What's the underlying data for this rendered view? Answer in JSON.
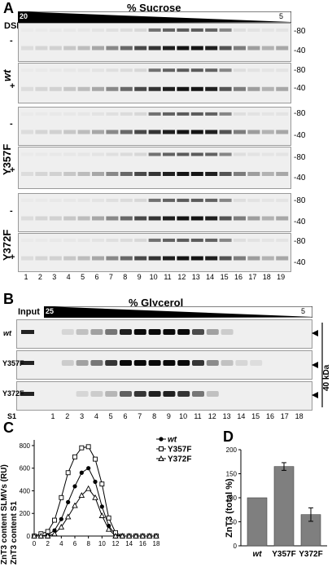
{
  "panelA": {
    "letter": "A",
    "title": "% Sucrose",
    "gradient_start": "20",
    "gradient_end": "5",
    "dsp_label": "DSP:",
    "minus": "-",
    "plus": "+",
    "groups": [
      "wt",
      "Y357F",
      "Y372F"
    ],
    "kda_labels": [
      "-80",
      "-40"
    ],
    "lanes": [
      "1",
      "2",
      "3",
      "4",
      "5",
      "6",
      "7",
      "8",
      "9",
      "10",
      "11",
      "12",
      "13",
      "14",
      "15",
      "16",
      "17",
      "18",
      "19"
    ]
  },
  "panelB": {
    "letter": "B",
    "title": "% Glycerol",
    "input_label": "Input",
    "gradient_start": "25",
    "gradient_end": "5",
    "rows": [
      "wt",
      "Y357F",
      "Y372F"
    ],
    "kda_label": "40 kDa",
    "s1_label": "S1",
    "lanes": [
      "1",
      "2",
      "3",
      "4",
      "5",
      "6",
      "7",
      "8",
      "9",
      "10",
      "11",
      "12",
      "13",
      "14",
      "15",
      "16",
      "17",
      "18"
    ]
  },
  "panelC": {
    "letter": "C",
    "ylabel_top": "ZnT3 content SLMVs (RU)",
    "ylabel_bottom": "ZnT3 content S1",
    "chart_data": {
      "type": "line",
      "x": [
        0,
        1,
        2,
        3,
        4,
        5,
        6,
        7,
        8,
        9,
        10,
        11,
        12,
        13,
        14,
        15,
        16,
        17,
        18
      ],
      "series": [
        {
          "name": "wt",
          "marker": "filled-circle",
          "values": [
            0,
            0,
            10,
            50,
            150,
            300,
            440,
            560,
            600,
            480,
            260,
            90,
            10,
            0,
            0,
            0,
            0,
            0,
            0
          ]
        },
        {
          "name": "Y357F",
          "marker": "open-square",
          "values": [
            0,
            20,
            40,
            140,
            340,
            560,
            700,
            780,
            790,
            680,
            460,
            160,
            30,
            0,
            0,
            0,
            0,
            0,
            0
          ]
        },
        {
          "name": "Y372F",
          "marker": "open-triangle",
          "values": [
            0,
            0,
            0,
            20,
            80,
            170,
            270,
            360,
            420,
            340,
            180,
            60,
            0,
            0,
            0,
            0,
            0,
            0,
            0
          ]
        }
      ],
      "yticks": [
        "0",
        "200",
        "400",
        "600",
        "800"
      ],
      "xticks": [
        "0",
        "2",
        "4",
        "6",
        "8",
        "10",
        "12",
        "14",
        "16",
        "18"
      ],
      "ylim": [
        0,
        850
      ],
      "xlim": [
        0,
        18
      ]
    }
  },
  "panelD": {
    "letter": "D",
    "ylabel": "ZnT3 (total %)",
    "chart_data": {
      "type": "bar",
      "categories": [
        "wt",
        "Y357F",
        "Y372F"
      ],
      "values": [
        100,
        165,
        65
      ],
      "errors": [
        0,
        8,
        14
      ],
      "yticks": [
        "0",
        "50",
        "100",
        "150",
        "200"
      ],
      "ylim": [
        0,
        200
      ],
      "bar_color": "#7f7f7f"
    }
  }
}
